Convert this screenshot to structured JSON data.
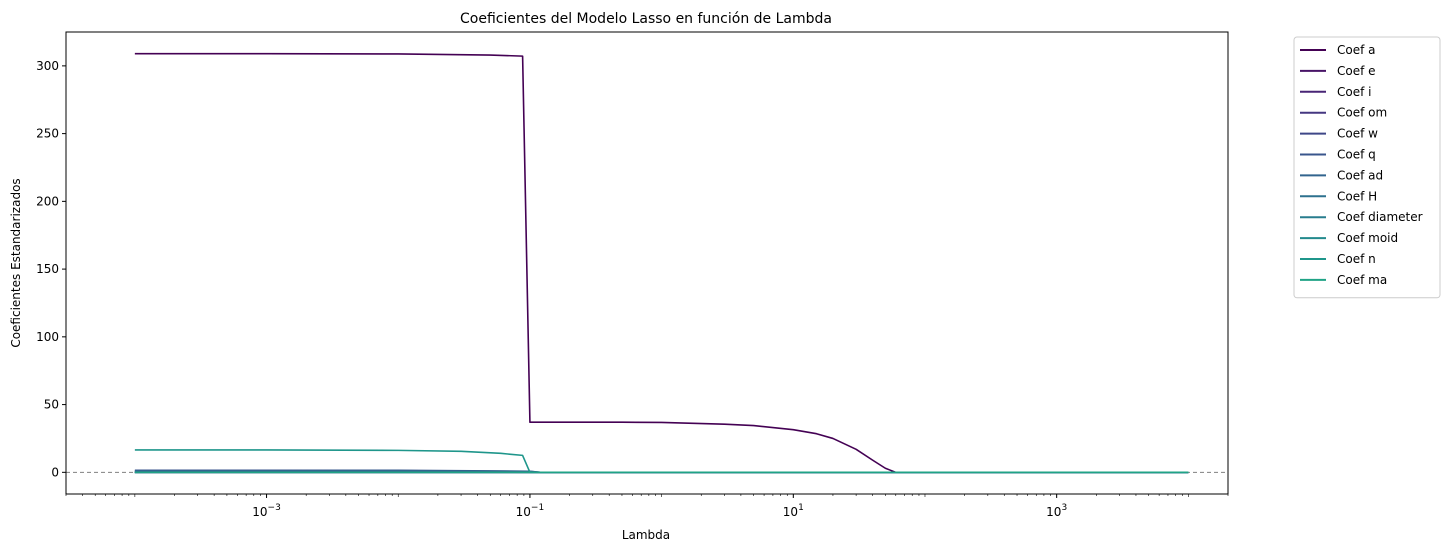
{
  "chart_data": {
    "type": "line",
    "title": "Coeficientes del Modelo Lasso en función de Lambda",
    "xlabel": "Lambda",
    "ylabel": "Coeficientes Estandarizados",
    "xscale": "log",
    "xlim": [
      3e-05,
      20000
    ],
    "ylim": [
      -16,
      325
    ],
    "xticks": [
      {
        "value": 0.001,
        "base": "10",
        "exp": "−3"
      },
      {
        "value": 0.1,
        "base": "10",
        "exp": "−1"
      },
      {
        "value": 10,
        "base": "10",
        "exp": "1"
      },
      {
        "value": 1000,
        "base": "10",
        "exp": "3"
      }
    ],
    "yticks": [
      0,
      50,
      100,
      150,
      200,
      250,
      300
    ],
    "zero_line": {
      "y": 0,
      "style": "dashed",
      "color": "#808080"
    },
    "legend_placement": "outside-top-right",
    "series": [
      {
        "name": "Coef a",
        "color": "#440154",
        "points": [
          [
            0.0001,
            309
          ],
          [
            0.001,
            309
          ],
          [
            0.01,
            308.8
          ],
          [
            0.05,
            308
          ],
          [
            0.088,
            307.2
          ],
          [
            0.1,
            37
          ],
          [
            0.5,
            37
          ],
          [
            1,
            36.8
          ],
          [
            3,
            35.5
          ],
          [
            5,
            34.5
          ],
          [
            10,
            31.5
          ],
          [
            15,
            28.5
          ],
          [
            20,
            25
          ],
          [
            30,
            17
          ],
          [
            40,
            9
          ],
          [
            50,
            3
          ],
          [
            60,
            0
          ],
          [
            10000,
            0
          ]
        ]
      },
      {
        "name": "Coef e",
        "color": "#481467",
        "points": [
          [
            0.0001,
            0
          ],
          [
            10000,
            0
          ]
        ]
      },
      {
        "name": "Coef i",
        "color": "#482576",
        "points": [
          [
            0.0001,
            0
          ],
          [
            10000,
            0
          ]
        ]
      },
      {
        "name": "Coef om",
        "color": "#453781",
        "points": [
          [
            0.0001,
            0.5
          ],
          [
            0.01,
            0.5
          ],
          [
            0.1,
            0
          ],
          [
            10000,
            0
          ]
        ]
      },
      {
        "name": "Coef w",
        "color": "#3f4788",
        "points": [
          [
            0.0001,
            0
          ],
          [
            10000,
            0
          ]
        ]
      },
      {
        "name": "Coef q",
        "color": "#39568c",
        "points": [
          [
            0.0001,
            1.5
          ],
          [
            0.01,
            1.5
          ],
          [
            0.1,
            0.8
          ],
          [
            0.12,
            0
          ],
          [
            10000,
            0
          ]
        ]
      },
      {
        "name": "Coef ad",
        "color": "#32648e",
        "points": [
          [
            0.0001,
            1
          ],
          [
            0.01,
            1.2
          ],
          [
            0.1,
            0.7
          ],
          [
            0.12,
            0
          ],
          [
            10000,
            0
          ]
        ]
      },
      {
        "name": "Coef H",
        "color": "#2d718e",
        "points": [
          [
            0.0001,
            0
          ],
          [
            10000,
            0
          ]
        ]
      },
      {
        "name": "Coef diameter",
        "color": "#287d8e",
        "points": [
          [
            0.0001,
            0
          ],
          [
            10000,
            0
          ]
        ]
      },
      {
        "name": "Coef moid",
        "color": "#238a8d",
        "points": [
          [
            0.0001,
            0
          ],
          [
            10000,
            0
          ]
        ]
      },
      {
        "name": "Coef n",
        "color": "#1f968b",
        "points": [
          [
            0.0001,
            16.5
          ],
          [
            0.001,
            16.5
          ],
          [
            0.01,
            16.2
          ],
          [
            0.03,
            15.5
          ],
          [
            0.06,
            14
          ],
          [
            0.088,
            12.5
          ],
          [
            0.1,
            0
          ],
          [
            10000,
            0
          ]
        ]
      },
      {
        "name": "Coef ma",
        "color": "#20a386",
        "points": [
          [
            0.0001,
            0
          ],
          [
            10000,
            0
          ]
        ]
      }
    ]
  }
}
